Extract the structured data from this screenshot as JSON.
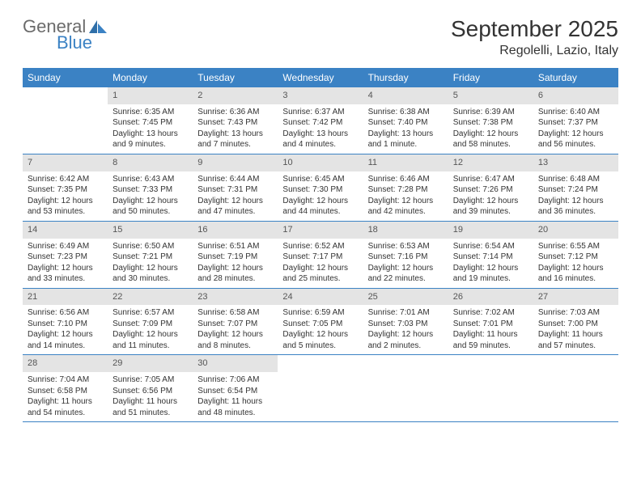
{
  "logo": {
    "text1": "General",
    "text2": "Blue"
  },
  "title": "September 2025",
  "location": "Regolelli, Lazio, Italy",
  "day_header_bg": "#3b82c4",
  "day_header_fg": "#ffffff",
  "daynum_bg": "#e4e4e4",
  "border_color": "#3b82c4",
  "headers": [
    "Sunday",
    "Monday",
    "Tuesday",
    "Wednesday",
    "Thursday",
    "Friday",
    "Saturday"
  ],
  "weeks": [
    [
      {
        "n": "",
        "sr": "",
        "ss": "",
        "dl": ""
      },
      {
        "n": "1",
        "sr": "Sunrise: 6:35 AM",
        "ss": "Sunset: 7:45 PM",
        "dl": "Daylight: 13 hours and 9 minutes."
      },
      {
        "n": "2",
        "sr": "Sunrise: 6:36 AM",
        "ss": "Sunset: 7:43 PM",
        "dl": "Daylight: 13 hours and 7 minutes."
      },
      {
        "n": "3",
        "sr": "Sunrise: 6:37 AM",
        "ss": "Sunset: 7:42 PM",
        "dl": "Daylight: 13 hours and 4 minutes."
      },
      {
        "n": "4",
        "sr": "Sunrise: 6:38 AM",
        "ss": "Sunset: 7:40 PM",
        "dl": "Daylight: 13 hours and 1 minute."
      },
      {
        "n": "5",
        "sr": "Sunrise: 6:39 AM",
        "ss": "Sunset: 7:38 PM",
        "dl": "Daylight: 12 hours and 58 minutes."
      },
      {
        "n": "6",
        "sr": "Sunrise: 6:40 AM",
        "ss": "Sunset: 7:37 PM",
        "dl": "Daylight: 12 hours and 56 minutes."
      }
    ],
    [
      {
        "n": "7",
        "sr": "Sunrise: 6:42 AM",
        "ss": "Sunset: 7:35 PM",
        "dl": "Daylight: 12 hours and 53 minutes."
      },
      {
        "n": "8",
        "sr": "Sunrise: 6:43 AM",
        "ss": "Sunset: 7:33 PM",
        "dl": "Daylight: 12 hours and 50 minutes."
      },
      {
        "n": "9",
        "sr": "Sunrise: 6:44 AM",
        "ss": "Sunset: 7:31 PM",
        "dl": "Daylight: 12 hours and 47 minutes."
      },
      {
        "n": "10",
        "sr": "Sunrise: 6:45 AM",
        "ss": "Sunset: 7:30 PM",
        "dl": "Daylight: 12 hours and 44 minutes."
      },
      {
        "n": "11",
        "sr": "Sunrise: 6:46 AM",
        "ss": "Sunset: 7:28 PM",
        "dl": "Daylight: 12 hours and 42 minutes."
      },
      {
        "n": "12",
        "sr": "Sunrise: 6:47 AM",
        "ss": "Sunset: 7:26 PM",
        "dl": "Daylight: 12 hours and 39 minutes."
      },
      {
        "n": "13",
        "sr": "Sunrise: 6:48 AM",
        "ss": "Sunset: 7:24 PM",
        "dl": "Daylight: 12 hours and 36 minutes."
      }
    ],
    [
      {
        "n": "14",
        "sr": "Sunrise: 6:49 AM",
        "ss": "Sunset: 7:23 PM",
        "dl": "Daylight: 12 hours and 33 minutes."
      },
      {
        "n": "15",
        "sr": "Sunrise: 6:50 AM",
        "ss": "Sunset: 7:21 PM",
        "dl": "Daylight: 12 hours and 30 minutes."
      },
      {
        "n": "16",
        "sr": "Sunrise: 6:51 AM",
        "ss": "Sunset: 7:19 PM",
        "dl": "Daylight: 12 hours and 28 minutes."
      },
      {
        "n": "17",
        "sr": "Sunrise: 6:52 AM",
        "ss": "Sunset: 7:17 PM",
        "dl": "Daylight: 12 hours and 25 minutes."
      },
      {
        "n": "18",
        "sr": "Sunrise: 6:53 AM",
        "ss": "Sunset: 7:16 PM",
        "dl": "Daylight: 12 hours and 22 minutes."
      },
      {
        "n": "19",
        "sr": "Sunrise: 6:54 AM",
        "ss": "Sunset: 7:14 PM",
        "dl": "Daylight: 12 hours and 19 minutes."
      },
      {
        "n": "20",
        "sr": "Sunrise: 6:55 AM",
        "ss": "Sunset: 7:12 PM",
        "dl": "Daylight: 12 hours and 16 minutes."
      }
    ],
    [
      {
        "n": "21",
        "sr": "Sunrise: 6:56 AM",
        "ss": "Sunset: 7:10 PM",
        "dl": "Daylight: 12 hours and 14 minutes."
      },
      {
        "n": "22",
        "sr": "Sunrise: 6:57 AM",
        "ss": "Sunset: 7:09 PM",
        "dl": "Daylight: 12 hours and 11 minutes."
      },
      {
        "n": "23",
        "sr": "Sunrise: 6:58 AM",
        "ss": "Sunset: 7:07 PM",
        "dl": "Daylight: 12 hours and 8 minutes."
      },
      {
        "n": "24",
        "sr": "Sunrise: 6:59 AM",
        "ss": "Sunset: 7:05 PM",
        "dl": "Daylight: 12 hours and 5 minutes."
      },
      {
        "n": "25",
        "sr": "Sunrise: 7:01 AM",
        "ss": "Sunset: 7:03 PM",
        "dl": "Daylight: 12 hours and 2 minutes."
      },
      {
        "n": "26",
        "sr": "Sunrise: 7:02 AM",
        "ss": "Sunset: 7:01 PM",
        "dl": "Daylight: 11 hours and 59 minutes."
      },
      {
        "n": "27",
        "sr": "Sunrise: 7:03 AM",
        "ss": "Sunset: 7:00 PM",
        "dl": "Daylight: 11 hours and 57 minutes."
      }
    ],
    [
      {
        "n": "28",
        "sr": "Sunrise: 7:04 AM",
        "ss": "Sunset: 6:58 PM",
        "dl": "Daylight: 11 hours and 54 minutes."
      },
      {
        "n": "29",
        "sr": "Sunrise: 7:05 AM",
        "ss": "Sunset: 6:56 PM",
        "dl": "Daylight: 11 hours and 51 minutes."
      },
      {
        "n": "30",
        "sr": "Sunrise: 7:06 AM",
        "ss": "Sunset: 6:54 PM",
        "dl": "Daylight: 11 hours and 48 minutes."
      },
      {
        "n": "",
        "sr": "",
        "ss": "",
        "dl": ""
      },
      {
        "n": "",
        "sr": "",
        "ss": "",
        "dl": ""
      },
      {
        "n": "",
        "sr": "",
        "ss": "",
        "dl": ""
      },
      {
        "n": "",
        "sr": "",
        "ss": "",
        "dl": ""
      }
    ]
  ]
}
